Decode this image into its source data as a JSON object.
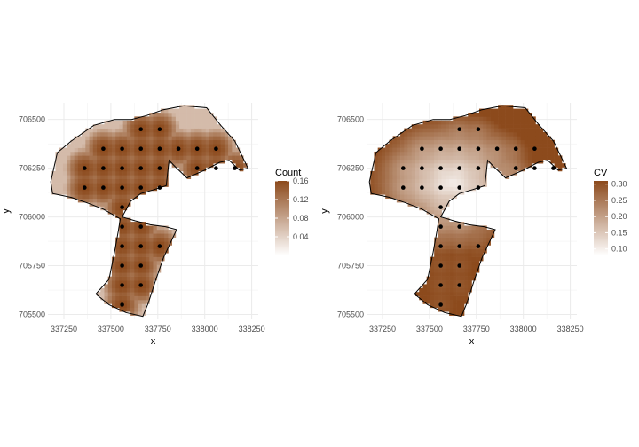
{
  "chart_data": [
    {
      "type": "heatmap",
      "fill_variable": "Count",
      "xlabel": "x",
      "ylabel": "y",
      "xlim": [
        337165,
        338285
      ],
      "ylim": [
        705475,
        706585
      ],
      "x_ticks": [
        337250,
        337500,
        337750,
        338000,
        338250
      ],
      "y_ticks": [
        705500,
        705750,
        706000,
        706250,
        706500
      ],
      "x_tick_labels": [
        "337250",
        "337500",
        "337750",
        "338000",
        "338250"
      ],
      "y_tick_labels": [
        "705500",
        "705750",
        "706000",
        "706250",
        "706500"
      ],
      "grid": true,
      "legend": {
        "title": "Count",
        "placement": "right",
        "range": [
          0.0,
          0.16
        ],
        "breaks": [
          0.04,
          0.08,
          0.12,
          0.16
        ],
        "labels": [
          "0.04",
          "0.08",
          "0.12",
          "0.16"
        ],
        "low_color": "#ffffff",
        "high_color": "#8c4a1c"
      },
      "surface": "mostly high values near 0.16; lower values along the edges",
      "edge_value": 0.06,
      "interior_value": 0.16
    },
    {
      "type": "heatmap",
      "fill_variable": "CV",
      "xlabel": "x",
      "ylabel": "y",
      "xlim": [
        337165,
        338285
      ],
      "ylim": [
        705475,
        706585
      ],
      "x_ticks": [
        337250,
        337500,
        337750,
        338000,
        338250
      ],
      "y_ticks": [
        705500,
        705750,
        706000,
        706250,
        706500
      ],
      "x_tick_labels": [
        "337250",
        "337500",
        "337750",
        "338000",
        "338250"
      ],
      "y_tick_labels": [
        "705500",
        "705750",
        "706000",
        "706250",
        "706500"
      ],
      "grid": true,
      "legend": {
        "title": "CV",
        "placement": "right",
        "range": [
          0.08,
          0.31
        ],
        "breaks": [
          0.1,
          0.15,
          0.2,
          0.25,
          0.3
        ],
        "labels": [
          "0.10",
          "0.15",
          "0.20",
          "0.25",
          "0.30"
        ],
        "low_color": "#ffffff",
        "high_color": "#8c4a1c"
      },
      "surface": "low near the sample points in the centre; high near the boundary, peaking at the east tip",
      "center_value": 0.09,
      "edge_value": 0.29
    }
  ],
  "boundary": [
    [
      337180,
      706180
    ],
    [
      337215,
      706330
    ],
    [
      337290,
      706390
    ],
    [
      337410,
      706470
    ],
    [
      337520,
      706500
    ],
    [
      337610,
      706500
    ],
    [
      337690,
      706520
    ],
    [
      337780,
      706550
    ],
    [
      337890,
      706570
    ],
    [
      338010,
      706560
    ],
    [
      338085,
      706470
    ],
    [
      338160,
      706390
    ],
    [
      338230,
      706250
    ],
    [
      338185,
      706240
    ],
    [
      338130,
      706290
    ],
    [
      338080,
      706280
    ],
    [
      338000,
      706240
    ],
    [
      337905,
      706200
    ],
    [
      337840,
      706260
    ],
    [
      337810,
      706290
    ],
    [
      337795,
      706160
    ],
    [
      337730,
      706140
    ],
    [
      337660,
      706120
    ],
    [
      337605,
      706080
    ],
    [
      337560,
      706000
    ],
    [
      337630,
      705980
    ],
    [
      337710,
      705960
    ],
    [
      337790,
      705950
    ],
    [
      337850,
      705935
    ],
    [
      337780,
      705790
    ],
    [
      337740,
      705680
    ],
    [
      337700,
      705560
    ],
    [
      337670,
      705490
    ],
    [
      337580,
      705510
    ],
    [
      337490,
      705550
    ],
    [
      337420,
      705605
    ],
    [
      337490,
      705680
    ],
    [
      337520,
      705820
    ],
    [
      337540,
      705930
    ],
    [
      337550,
      705990
    ],
    [
      337460,
      706040
    ],
    [
      337380,
      706070
    ],
    [
      337290,
      706100
    ],
    [
      337190,
      706120
    ]
  ],
  "sample_points": [
    [
      337660,
      706450
    ],
    [
      337760,
      706450
    ],
    [
      337460,
      706350
    ],
    [
      337560,
      706350
    ],
    [
      337660,
      706350
    ],
    [
      337760,
      706350
    ],
    [
      337860,
      706350
    ],
    [
      337960,
      706350
    ],
    [
      338060,
      706350
    ],
    [
      337360,
      706250
    ],
    [
      337460,
      706250
    ],
    [
      337560,
      706250
    ],
    [
      337660,
      706250
    ],
    [
      337760,
      706250
    ],
    [
      337960,
      706250
    ],
    [
      338060,
      706250
    ],
    [
      338160,
      706250
    ],
    [
      337360,
      706150
    ],
    [
      337460,
      706150
    ],
    [
      337560,
      706150
    ],
    [
      337660,
      706150
    ],
    [
      337760,
      706150
    ],
    [
      337560,
      706050
    ],
    [
      337560,
      705950
    ],
    [
      337660,
      705950
    ],
    [
      337560,
      705850
    ],
    [
      337660,
      705850
    ],
    [
      337760,
      705850
    ],
    [
      337560,
      705750
    ],
    [
      337660,
      705750
    ],
    [
      337560,
      705650
    ],
    [
      337660,
      705650
    ],
    [
      337560,
      705550
    ]
  ]
}
